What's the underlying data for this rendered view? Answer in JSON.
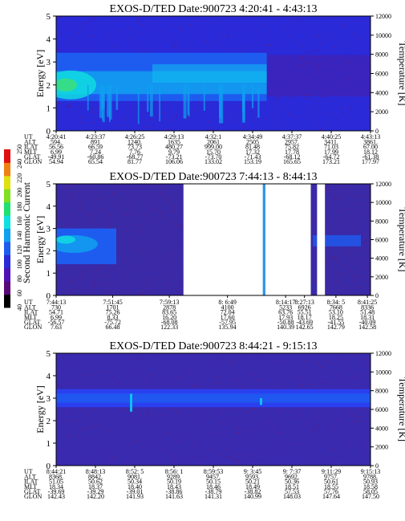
{
  "colorbar": {
    "label": "Second Harmonic Current",
    "ticks": [
      "40",
      "60",
      "80",
      "100",
      "120",
      "140",
      "160",
      "180",
      "200",
      "220",
      "240",
      "250"
    ],
    "colors": [
      "#000000",
      "#5a0a78",
      "#5012b4",
      "#2a2ad8",
      "#1e5cf0",
      "#10a0f0",
      "#10e0e0",
      "#20e070",
      "#80e020",
      "#e0e010",
      "#f08010",
      "#e01010"
    ]
  },
  "chart_data": [
    {
      "type": "heatmap",
      "title": "EXOS-D/TED   Date:900723   4:20:41 - 4:43:13",
      "ylabel": "Energy [eV]",
      "y2label": "Temperature [K]",
      "ylim": [
        0,
        5
      ],
      "y2lim": [
        0,
        12000
      ],
      "yticks": [
        "0",
        "1",
        "2",
        "3",
        "4",
        "5"
      ],
      "y2ticks": [
        "0",
        "2000",
        "4000",
        "6000",
        "8000",
        "10000",
        "12000"
      ],
      "background": "#2a2ad8",
      "band": {
        "low_eV": 1.3,
        "high_eV": 3.4,
        "fades_after_fraction": 0.67
      },
      "row_labels": [
        "UT",
        "ALT",
        "ILAT",
        "MLT",
        "GLAT",
        "GLON"
      ],
      "columns": [
        [
          "4:20:41",
          "594.",
          "56.56",
          "6.99",
          "-49.91",
          "54.94"
        ],
        [
          "4:23:37",
          "891",
          "66.59",
          "7.24",
          "-60.86",
          "65.54"
        ],
        [
          "4:26:25",
          "1240.",
          "73.73",
          "7.76",
          "-68.77",
          "81.77"
        ],
        [
          "4:29:13",
          "1635",
          "480.27",
          "9.79",
          "-73.21",
          "106.06"
        ],
        [
          "4:32:1",
          "2061",
          "999.00",
          "15.70",
          "-73.70",
          "133.02"
        ],
        [
          "4:34:49",
          "2505",
          "81.48",
          "17.32",
          "-71.43",
          "153.19"
        ],
        [
          "4:37:37",
          "2957.",
          "75.82",
          "17.78",
          "-68.12",
          "165.65"
        ],
        [
          "4:40:25",
          "3411.",
          "71.03",
          "17.99",
          "-64.72",
          "173.21"
        ],
        [
          "4:43:13",
          "3861.",
          "67.00",
          "18.12",
          "-61.38",
          "177.97"
        ]
      ]
    },
    {
      "type": "heatmap",
      "title": "EXOS-D/TED   Date:900723   7:44:13 - 8:44:13",
      "ylabel": "Energy [eV]",
      "y2label": "Temperature [K]",
      "ylim": [
        0,
        5
      ],
      "y2lim": [
        0,
        12000
      ],
      "yticks": [
        "0",
        "1",
        "2",
        "3",
        "4",
        "5"
      ],
      "y2ticks": [
        "0",
        "2000",
        "4000",
        "6000",
        "8000",
        "10000",
        "12000"
      ],
      "background": "#3a2aa8",
      "data_gaps_fraction": [
        [
          0.405,
          0.658
        ],
        [
          0.665,
          0.81
        ],
        [
          0.83,
          0.855
        ]
      ],
      "row_labels": [
        "UT",
        "ALT",
        "ILAT",
        "MLT",
        "GLAT",
        "GLON"
      ],
      "columns": [
        [
          "7:44:13",
          "730",
          "54.71",
          "6.99",
          "-56.57",
          "7.63"
        ],
        [
          "7:51:45",
          "1701",
          "75.26",
          "8.33",
          "-75.72",
          "66.48"
        ],
        [
          "7:59:13",
          "2878",
          "83.65",
          "16.20",
          "-68.08",
          "122.33"
        ],
        [
          "8: 6:49",
          "4100",
          "72.04",
          "17.60",
          "-57.95",
          "135.94"
        ],
        [
          "8:14:17",
          "5233",
          "63.76",
          "17.93",
          "-50.88",
          "140.39"
        ],
        [
          "8:27:13",
          "6926",
          "55.51",
          "18.17",
          "-43.69",
          "142.65"
        ],
        [
          "8:34: 5",
          "7668",
          "53.10",
          "18.25",
          "-41.55",
          "142.79"
        ],
        [
          "8:41:25",
          "8336",
          "51.48",
          "18.31",
          "-40.09",
          "142.58"
        ]
      ]
    },
    {
      "type": "heatmap",
      "title": "EXOS-D/TED   Date:900723   8:44:21 - 9:15:13",
      "ylabel": "Energy [eV]",
      "y2label": "Temperature [K]",
      "ylim": [
        0,
        5
      ],
      "y2lim": [
        0,
        12000
      ],
      "yticks": [
        "0",
        "1",
        "2",
        "3",
        "4",
        "5"
      ],
      "y2ticks": [
        "0",
        "2000",
        "4000",
        "6000",
        "8000",
        "10000",
        "12000"
      ],
      "background": "#3a2ab0",
      "band": {
        "low_eV": 2.6,
        "high_eV": 3.4
      },
      "row_labels": [
        "UT",
        "ALT",
        "ILAT",
        "MLT",
        "GLAT",
        "GLON"
      ],
      "columns": [
        [
          "8:44:21",
          "8368.",
          "51.05",
          "18.34",
          "-39.69",
          "142.43"
        ],
        [
          "8:48:13",
          "8842.",
          "50.62",
          "18.37",
          "-39.29",
          "142.20"
        ],
        [
          "8:52: 5",
          "9081.",
          "50.34",
          "18.40",
          "-39.01",
          "141.93"
        ],
        [
          "8:56: 1",
          "9289.",
          "50.19",
          "18.43",
          "-38.86",
          "141.63"
        ],
        [
          "8:59:53",
          "9457.",
          "50.15",
          "18.46",
          "-38.79",
          "141.31"
        ],
        [
          "9: 3:45",
          "9593.",
          "50.21",
          "18.49",
          "-38.82",
          "140.99"
        ],
        [
          "9: 7:37",
          "9692.",
          "50.36",
          "18.51",
          "57.53",
          "148.03"
        ],
        [
          "9:11:29",
          "9757.",
          "50.61",
          "18.55",
          "57.76",
          "147.64"
        ],
        [
          "9:15:13",
          "9788.",
          "50.93",
          "18.58",
          "58.05",
          "147.50"
        ]
      ]
    }
  ]
}
